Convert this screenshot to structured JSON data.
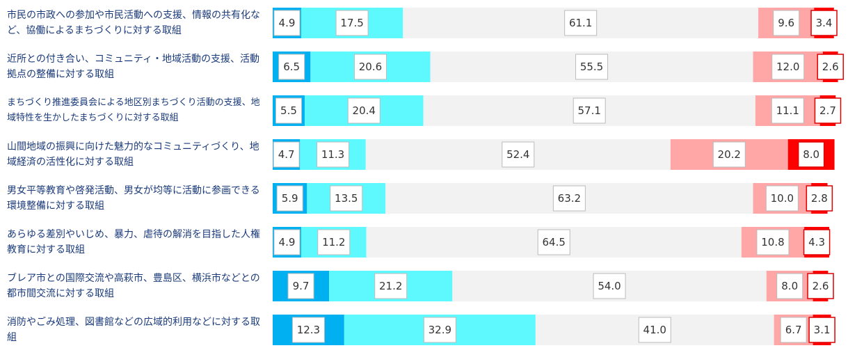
{
  "chart_data": {
    "type": "stacked_bar_horizontal",
    "categories": [
      "市民の市政への参加や市民活動への支援、情報の共有化など、協働によるまちづくりに対する取組",
      "近所との付き合い、コミュニティ・地域活動の支援、活動拠点の整備に対する取組",
      "まちづくり推進委員会による地区別まちづくり活動の支援、地域特性を生かしたまちづくりに対する取組",
      "山間地域の振興に向けた魅力的なコミュニティづくり、地域経済の活性化に対する取組",
      "男女平等教育や啓発活動、男女が均等に活動に参画できる環境整備に対する取組",
      "あらゆる差別やいじめ、暴力、虐待の解消を目指した人権教育に対する取組",
      "ブレア市との国際交流や高萩市、豊島区、横浜市などとの都市間交流に対する取組",
      "消防やごみ処理、図書館などの広域的利用などに対する取組"
    ],
    "series": [
      {
        "color": "#00b0f0",
        "values": [
          4.9,
          6.5,
          5.5,
          4.7,
          5.9,
          4.9,
          9.7,
          12.3
        ],
        "value_labels": [
          "4.9",
          "6.5",
          "5.5",
          "4.7",
          "5.9",
          "4.9",
          "9.7",
          "12.3"
        ]
      },
      {
        "color": "#5ef9ff",
        "values": [
          17.5,
          20.6,
          20.4,
          11.3,
          13.5,
          11.2,
          21.2,
          32.9
        ],
        "value_labels": [
          "17.5",
          "20.6",
          "20.4",
          "11.3",
          "13.5",
          "11.2",
          "21.2",
          "32.9"
        ]
      },
      {
        "color": "#f2f2f2",
        "values": [
          61.1,
          55.5,
          57.1,
          52.4,
          63.2,
          64.5,
          54.0,
          41.0
        ],
        "value_labels": [
          "61.1",
          "55.5",
          "57.1",
          "52.4",
          "63.2",
          "64.5",
          "54.0",
          "41.0"
        ]
      },
      {
        "color": "#ffa7a7",
        "values": [
          9.6,
          12.0,
          11.1,
          20.2,
          10.0,
          10.8,
          8.0,
          6.7
        ],
        "value_labels": [
          "9.6",
          "12.0",
          "11.1",
          "20.2",
          "10.0",
          "10.8",
          "8.0",
          "6.7"
        ]
      },
      {
        "color": "#ff0000",
        "values": [
          3.4,
          2.6,
          2.7,
          8.0,
          2.8,
          4.3,
          2.6,
          3.1
        ],
        "value_labels": [
          "3.4",
          "2.6",
          "2.7",
          "8.0",
          "2.8",
          "4.3",
          "2.6",
          "3.1"
        ]
      }
    ],
    "xlim": [
      0,
      100
    ]
  }
}
